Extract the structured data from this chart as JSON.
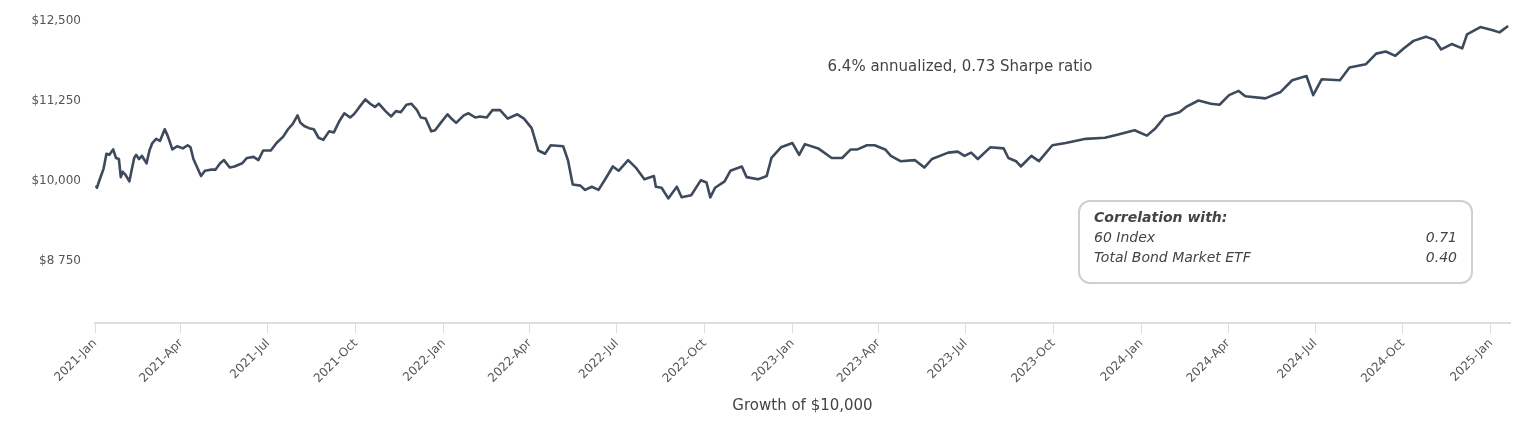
{
  "chart_data": {
    "type": "line",
    "xlabel": "Growth of $10,000",
    "annotations": [
      "6.4% annualized, 0.73 Sharpe ratio",
      "Correlation with:",
      "60 Index",
      "0.71",
      "Total Bond Market ETF",
      "0.40"
    ],
    "xlim": [
      "2021-01-01",
      "2025-01-21"
    ],
    "xticks": [
      {
        "value": "2021-01-01",
        "label": "2021-Jan"
      },
      {
        "value": "2021-04-01",
        "label": "2021-Apr"
      },
      {
        "value": "2021-07-01",
        "label": "2021-Jul"
      },
      {
        "value": "2021-10-01",
        "label": "2021-Oct"
      },
      {
        "value": "2022-01-01",
        "label": "2022-Jan"
      },
      {
        "value": "2022-04-01",
        "label": "2022-Apr"
      },
      {
        "value": "2022-07-01",
        "label": "2022-Jul"
      },
      {
        "value": "2022-10-01",
        "label": "2022-Oct"
      },
      {
        "value": "2023-01-01",
        "label": "2023-Jan"
      },
      {
        "value": "2023-04-01",
        "label": "2023-Apr"
      },
      {
        "value": "2023-07-01",
        "label": "2023-Jul"
      },
      {
        "value": "2023-10-01",
        "label": "2023-Oct"
      },
      {
        "value": "2024-01-01",
        "label": "2024-Jan"
      },
      {
        "value": "2024-04-01",
        "label": "2024-Apr"
      },
      {
        "value": "2024-07-01",
        "label": "2024-Jul"
      },
      {
        "value": "2024-10-01",
        "label": "2024-Oct"
      },
      {
        "value": "2025-01-01",
        "label": "2025-Jan"
      }
    ],
    "ylim": [
      7770,
      12500
    ],
    "yticks": [
      {
        "value": 8750,
        "label": "$8 750"
      },
      {
        "value": 10000,
        "label": "$10,000"
      },
      {
        "value": 11250,
        "label": "$11,250"
      },
      {
        "value": 12500,
        "label": "$12,500"
      }
    ],
    "marker": "none",
    "line_style": "solid",
    "series": [
      {
        "color": "#3d4a5c",
        "x": [
          "2021-01-02",
          "2021-01-03",
          "2021-01-06",
          "2021-01-08",
          "2021-01-10",
          "2021-01-13",
          "2021-01-16",
          "2021-01-20",
          "2021-01-23",
          "2021-01-26",
          "2021-01-28",
          "2021-01-30",
          "2021-02-02",
          "2021-02-06",
          "2021-02-08",
          "2021-02-11",
          "2021-02-13",
          "2021-02-16",
          "2021-02-19",
          "2021-02-24",
          "2021-02-27",
          "2021-03-02",
          "2021-03-06",
          "2021-03-10",
          "2021-03-15",
          "2021-03-18",
          "2021-03-23",
          "2021-03-28",
          "2021-04-03",
          "2021-04-08",
          "2021-04-11",
          "2021-04-14",
          "2021-04-18",
          "2021-04-22",
          "2021-04-26",
          "2021-05-02",
          "2021-05-07",
          "2021-05-12",
          "2021-05-16",
          "2021-05-22",
          "2021-05-27",
          "2021-06-04",
          "2021-06-09",
          "2021-06-16",
          "2021-06-21",
          "2021-06-26",
          "2021-07-04",
          "2021-07-10",
          "2021-07-17",
          "2021-07-22",
          "2021-07-27",
          "2021-08-01",
          "2021-08-04",
          "2021-08-08",
          "2021-08-13",
          "2021-08-18",
          "2021-08-23",
          "2021-08-28",
          "2021-09-03",
          "2021-09-08",
          "2021-09-14",
          "2021-09-19",
          "2021-09-25",
          "2021-09-29",
          "2021-10-04",
          "2021-10-11",
          "2021-10-16",
          "2021-10-21",
          "2021-10-25",
          "2021-11-01",
          "2021-11-07",
          "2021-11-12",
          "2021-11-17",
          "2021-11-23",
          "2021-11-28",
          "2021-12-04",
          "2021-12-08",
          "2021-12-13",
          "2021-12-19",
          "2021-12-23",
          "2021-12-28",
          "2022-01-05",
          "2022-01-09",
          "2022-01-14",
          "2022-01-22",
          "2022-01-27",
          "2022-02-03",
          "2022-02-08",
          "2022-02-15",
          "2022-02-21",
          "2022-03-01",
          "2022-03-09",
          "2022-03-19",
          "2022-03-26",
          "2022-04-03",
          "2022-04-10",
          "2022-04-17",
          "2022-04-23",
          "2022-05-06",
          "2022-05-11",
          "2022-05-16",
          "2022-05-24",
          "2022-05-29",
          "2022-06-05",
          "2022-06-12",
          "2022-06-19",
          "2022-06-27",
          "2022-07-03",
          "2022-07-13",
          "2022-07-21",
          "2022-07-30",
          "2022-08-09",
          "2022-08-11",
          "2022-08-17",
          "2022-08-24",
          "2022-09-02",
          "2022-09-07",
          "2022-09-17",
          "2022-09-27",
          "2022-10-03",
          "2022-10-07",
          "2022-10-12",
          "2022-10-22",
          "2022-10-28",
          "2022-11-09",
          "2022-11-14",
          "2022-11-26",
          "2022-12-05",
          "2022-12-10",
          "2022-12-20",
          "2023-01-01",
          "2023-01-08",
          "2023-01-14",
          "2023-01-28",
          "2023-02-11",
          "2023-02-22",
          "2023-03-03",
          "2023-03-10",
          "2023-03-20",
          "2023-03-28",
          "2023-04-08",
          "2023-04-14",
          "2023-04-24",
          "2023-05-09",
          "2023-05-19",
          "2023-05-27",
          "2023-06-13",
          "2023-06-23",
          "2023-06-30",
          "2023-07-07",
          "2023-07-14",
          "2023-07-27",
          "2023-08-10",
          "2023-08-15",
          "2023-08-23",
          "2023-08-28",
          "2023-09-08",
          "2023-09-16",
          "2023-09-30",
          "2023-10-14",
          "2023-11-04",
          "2023-11-24",
          "2023-12-08",
          "2023-12-25",
          "2024-01-07",
          "2024-01-16",
          "2024-01-26",
          "2024-02-10",
          "2024-02-17",
          "2024-03-01",
          "2024-03-14",
          "2024-03-23",
          "2024-04-02",
          "2024-04-12",
          "2024-04-19",
          "2024-05-10",
          "2024-05-26",
          "2024-06-07",
          "2024-06-22",
          "2024-06-29",
          "2024-07-08",
          "2024-07-27",
          "2024-08-06",
          "2024-08-23",
          "2024-09-03",
          "2024-09-13",
          "2024-09-23",
          "2024-10-02",
          "2024-10-12",
          "2024-10-25",
          "2024-11-03",
          "2024-11-10",
          "2024-11-21",
          "2024-12-02",
          "2024-12-07",
          "2024-12-21",
          "2025-01-03",
          "2025-01-10",
          "2025-01-19"
        ],
        "values": [
          9925,
          9892,
          10025,
          10108,
          10192,
          10425,
          10408,
          10492,
          10358,
          10342,
          10058,
          10142,
          10092,
          9992,
          10142,
          10358,
          10408,
          10342,
          10392,
          10275,
          10475,
          10592,
          10658,
          10625,
          10808,
          10708,
          10492,
          10542,
          10508,
          10558,
          10525,
          10342,
          10208,
          10075,
          10158,
          10175,
          10175,
          10275,
          10325,
          10208,
          10225,
          10275,
          10358,
          10375,
          10325,
          10475,
          10475,
          10592,
          10692,
          10808,
          10892,
          11025,
          10908,
          10858,
          10825,
          10808,
          10675,
          10642,
          10775,
          10758,
          10942,
          11058,
          10992,
          11042,
          11142,
          11275,
          11208,
          11158,
          11208,
          11092,
          11008,
          11092,
          11075,
          11192,
          11208,
          11108,
          10992,
          10975,
          10775,
          10792,
          10892,
          11042,
          10975,
          10908,
          11025,
          11058,
          10992,
          11008,
          10992,
          11108,
          11108,
          10975,
          11042,
          10975,
          10825,
          10475,
          10425,
          10558,
          10542,
          10325,
          9942,
          9925,
          9858,
          9908,
          9858,
          10025,
          10225,
          10158,
          10325,
          10208,
          10025,
          10075,
          9908,
          9892,
          9725,
          9908,
          9742,
          9775,
          10008,
          9975,
          9742,
          9892,
          9992,
          10158,
          10225,
          10058,
          10025,
          10075,
          10358,
          10525,
          10592,
          10408,
          10575,
          10508,
          10358,
          10358,
          10492,
          10492,
          10558,
          10558,
          10492,
          10392,
          10308,
          10325,
          10208,
          10342,
          10442,
          10458,
          10392,
          10442,
          10342,
          10525,
          10508,
          10358,
          10308,
          10225,
          10392,
          10308,
          10558,
          10592,
          10658,
          10675,
          10725,
          10792,
          10708,
          10825,
          11008,
          11075,
          11158,
          11258,
          11208,
          11192,
          11342,
          11408,
          11325,
          11292,
          11392,
          11575,
          11642,
          11342,
          11592,
          11575,
          11775,
          11825,
          11992,
          12025,
          11958,
          12075,
          12192,
          12258,
          12208,
          12058,
          12142,
          12075,
          12292,
          12408,
          12358,
          12325,
          12425
        ]
      }
    ]
  }
}
